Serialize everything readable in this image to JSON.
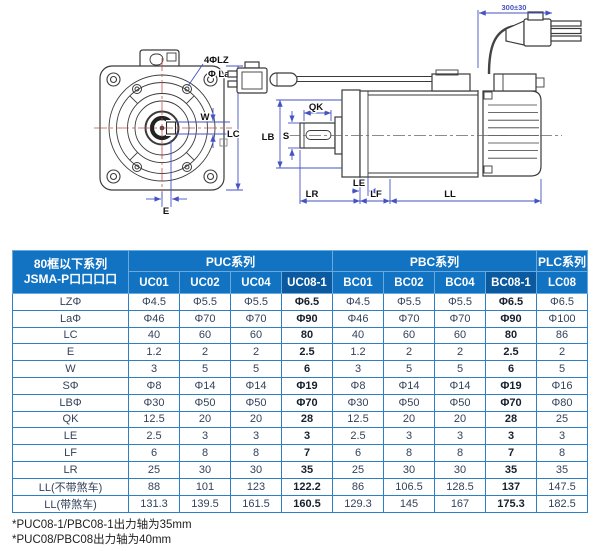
{
  "drawing": {
    "front": {
      "label_holes": "4ΦLZ",
      "label_pilot": "Φ La",
      "label_w": "W",
      "label_lc": "LC",
      "label_e": "E"
    },
    "side": {
      "label_qk": "QK",
      "label_lb": "LB",
      "label_s": "S",
      "label_le": "LE",
      "label_lr": "LR",
      "label_lf": "LF",
      "label_ll": "LL",
      "label_cable": "300±30"
    }
  },
  "table": {
    "corner": {
      "line1": "80框以下系列",
      "line2": "JSMA-P口口口口"
    },
    "groups": [
      {
        "label": "PUC系列",
        "span": 4
      },
      {
        "label": "PBC系列",
        "span": 4
      },
      {
        "label": "PLC系列",
        "span": 1
      }
    ],
    "columns": [
      "UC01",
      "UC02",
      "UC04",
      "UC08-1",
      "BC01",
      "BC02",
      "BC04",
      "BC08-1",
      "LC08"
    ],
    "highlight_column_indexes": [
      3,
      7
    ],
    "rows": [
      {
        "label": "LZΦ",
        "values": [
          "Φ4.5",
          "Φ5.5",
          "Φ5.5",
          "Φ6.5",
          "Φ4.5",
          "Φ5.5",
          "Φ5.5",
          "Φ6.5",
          "Φ6.5"
        ]
      },
      {
        "label": "LaΦ",
        "values": [
          "Φ46",
          "Φ70",
          "Φ70",
          "Φ90",
          "Φ46",
          "Φ70",
          "Φ70",
          "Φ90",
          "Φ100"
        ]
      },
      {
        "label": "LC",
        "values": [
          "40",
          "60",
          "60",
          "80",
          "40",
          "60",
          "60",
          "80",
          "86"
        ]
      },
      {
        "label": "E",
        "values": [
          "1.2",
          "2",
          "2",
          "2.5",
          "1.2",
          "2",
          "2",
          "2.5",
          "2"
        ]
      },
      {
        "label": "W",
        "values": [
          "3",
          "5",
          "5",
          "6",
          "3",
          "5",
          "5",
          "6",
          "5"
        ]
      },
      {
        "label": "SΦ",
        "values": [
          "Φ8",
          "Φ14",
          "Φ14",
          "Φ19",
          "Φ8",
          "Φ14",
          "Φ14",
          "Φ19",
          "Φ16"
        ]
      },
      {
        "label": "LBΦ",
        "values": [
          "Φ30",
          "Φ50",
          "Φ50",
          "Φ70",
          "Φ30",
          "Φ50",
          "Φ50",
          "Φ70",
          "Φ80"
        ]
      },
      {
        "label": "QK",
        "values": [
          "12.5",
          "20",
          "20",
          "28",
          "12.5",
          "20",
          "20",
          "28",
          "25"
        ]
      },
      {
        "label": "LE",
        "values": [
          "2.5",
          "3",
          "3",
          "3",
          "2.5",
          "3",
          "3",
          "3",
          "3"
        ]
      },
      {
        "label": "LF",
        "values": [
          "6",
          "8",
          "8",
          "7",
          "6",
          "8",
          "8",
          "7",
          "8"
        ]
      },
      {
        "label": "LR",
        "values": [
          "25",
          "30",
          "30",
          "35",
          "25",
          "30",
          "30",
          "35",
          "35"
        ]
      },
      {
        "label": "LL(不带煞车)",
        "values": [
          "88",
          "101",
          "123",
          "122.2",
          "86",
          "106.5",
          "128.5",
          "137",
          "147.5"
        ]
      },
      {
        "label": "LL(带煞车)",
        "values": [
          "131.3",
          "139.5",
          "161.5",
          "160.5",
          "129.3",
          "145",
          "167",
          "175.3",
          "182.5"
        ]
      }
    ]
  },
  "footnotes": [
    "*PUC08-1/PBC08-1出力轴为35mm",
    "*PUC08/PBC08出力轴为40mm"
  ],
  "colors": {
    "header_blue": "#1173c2",
    "header_blue_dark": "#0b5aa0",
    "table_border": "#2c80c6",
    "body_text": "#33425a",
    "dimension_blue": "#4553c2",
    "centerline_red": "#c0504d",
    "drawing_line": "#3a3a3a"
  }
}
